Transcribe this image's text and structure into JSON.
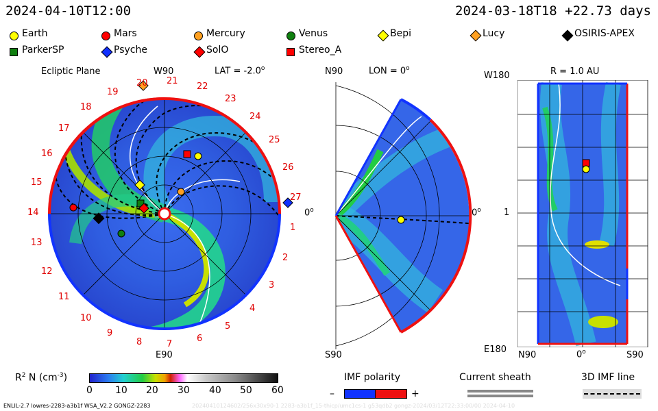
{
  "header": {
    "time": "2024-04-10T12:00",
    "start": "2024-03-18T18 +22.73 days"
  },
  "legend": [
    {
      "name": "Earth",
      "shape": "circle",
      "color": "#ffff00"
    },
    {
      "name": "Mars",
      "shape": "circle",
      "color": "#ff0000"
    },
    {
      "name": "Mercury",
      "shape": "circle",
      "color": "#ffa020"
    },
    {
      "name": "Venus",
      "shape": "circle",
      "color": "#108010"
    },
    {
      "name": "Bepi",
      "shape": "diamond",
      "color": "#ffff00"
    },
    {
      "name": "Lucy",
      "shape": "diamond",
      "color": "#ffa020"
    },
    {
      "name": "OSIRIS-APEX",
      "shape": "diamond",
      "color": "#000000"
    },
    {
      "name": "ParkerSP",
      "shape": "square",
      "color": "#108010"
    },
    {
      "name": "Psyche",
      "shape": "diamond",
      "color": "#1030ff"
    },
    {
      "name": "SolO",
      "shape": "diamond",
      "color": "#ff0000"
    },
    {
      "name": "Stereo_A",
      "shape": "square",
      "color": "#ff0000"
    }
  ],
  "panel1": {
    "title": "Ecliptic Plane",
    "w90": "W90",
    "lat": "LAT = -2.0",
    "lat_sup": "o",
    "zero": "0",
    "zero_sup": "o",
    "e90": "E90",
    "rotations": [
      "20",
      "21",
      "22",
      "23",
      "24",
      "25",
      "26",
      "27",
      "1",
      "2",
      "3",
      "4",
      "5",
      "6",
      "7",
      "8",
      "9",
      "10",
      "11",
      "12",
      "13",
      "14",
      "15",
      "16",
      "17",
      "18",
      "19"
    ]
  },
  "panel2": {
    "n90": "N90",
    "lon": "LON = 0",
    "lon_sup": "o",
    "zero": "0",
    "zero_sup": "o",
    "s90": "S90"
  },
  "panel3": {
    "w180": "W180",
    "r": "R = 1.0 AU",
    "one": "1",
    "e180": "E180",
    "n90": "N90",
    "zero": "0",
    "zero_sup": "o",
    "s90": "S90"
  },
  "colorbar": {
    "label": "R",
    "label_sup": "2",
    "label_rest": " N (cm",
    "label_exp": "-3",
    "label_end": ")",
    "ticks": [
      "0",
      "10",
      "20",
      "30",
      "40",
      "50",
      "60"
    ]
  },
  "imf": {
    "title": "IMF polarity",
    "minus": "–",
    "plus": "+"
  },
  "sheath": {
    "title": "Current sheath"
  },
  "imf3d": {
    "title": "3D IMF line"
  },
  "footer": {
    "left": "ENLIL-2.7 lowres-2283-a3b1f WSA_V2.2 GONGZ-2283",
    "faint": "20240410124602/256x30x90-1 2283-a3b1f_15-thicp/umc1cs-1 g53qdb2 gongz-2024/03/12T22:33:00/00 2024-04-10"
  }
}
